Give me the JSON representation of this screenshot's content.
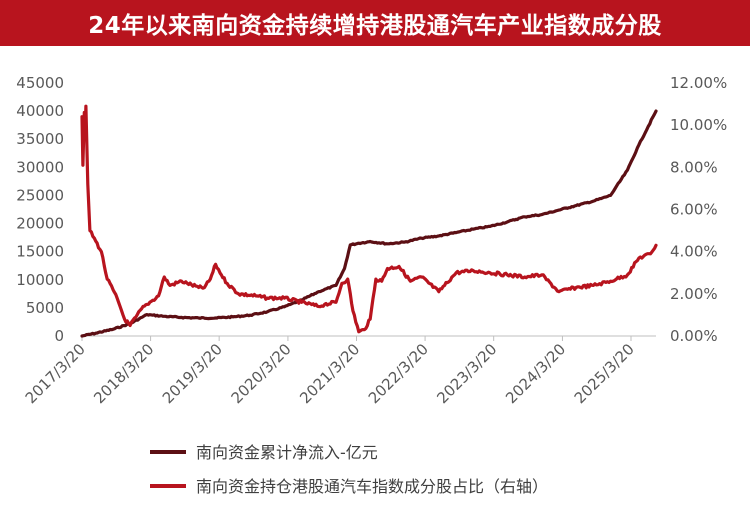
{
  "chart_data": {
    "type": "line",
    "title": "24年以来南向资金持续增持港股通汽车产业指数成分股",
    "x_start": "2017/3/20",
    "x_end": "2025/7/31",
    "x_ticks": [
      "2017/3/20",
      "2018/3/20",
      "2019/3/20",
      "2020/3/20",
      "2021/3/20",
      "2022/3/20",
      "2023/3/20",
      "2024/3/20",
      "2025/3/20"
    ],
    "y_left": {
      "lim": [
        0,
        45000
      ],
      "ticks": [
        "0",
        "5000",
        "10000",
        "15000",
        "20000",
        "25000",
        "30000",
        "35000",
        "40000",
        "45000"
      ]
    },
    "y_right": {
      "lim": [
        0,
        12
      ],
      "ticks": [
        "0.00%",
        "2.00%",
        "4.00%",
        "6.00%",
        "8.00%",
        "10.00%",
        "12.00%"
      ]
    },
    "legend_position": "bottom",
    "series": [
      {
        "name": "南向资金累计净流入-亿元",
        "axis": "left",
        "color": "#5c0f14",
        "x": [
          "2017/3/20",
          "2017/6/1",
          "2017/9/1",
          "2017/12/1",
          "2018/3/1",
          "2018/4/1",
          "2018/6/1",
          "2018/9/1",
          "2018/12/1",
          "2019/3/1",
          "2019/6/1",
          "2019/9/1",
          "2019/12/1",
          "2020/3/1",
          "2020/4/1",
          "2020/6/1",
          "2020/9/1",
          "2020/12/1",
          "2021/1/15",
          "2021/2/15",
          "2021/4/1",
          "2021/6/1",
          "2021/9/1",
          "2021/12/1",
          "2022/3/1",
          "2022/6/1",
          "2022/9/1",
          "2022/12/1",
          "2023/3/1",
          "2023/6/1",
          "2023/9/1",
          "2023/12/1",
          "2024/3/1",
          "2024/6/1",
          "2024/9/1",
          "2024/12/1",
          "2025/3/1",
          "2025/5/1",
          "2025/7/31"
        ],
        "values": [
          0,
          500,
          1200,
          2200,
          3800,
          3700,
          3500,
          3300,
          3200,
          3200,
          3400,
          3700,
          4300,
          5200,
          5600,
          6400,
          7900,
          9000,
          12000,
          16200,
          16500,
          16800,
          16400,
          16700,
          17400,
          17800,
          18400,
          19000,
          19500,
          20300,
          21200,
          21600,
          22400,
          23200,
          24000,
          25000,
          29500,
          34000,
          40000
        ]
      },
      {
        "name": "南向资金持仓港股通汽车指数成分股占比（右轴）",
        "axis": "right",
        "color": "#b8141e",
        "x": [
          "2017/3/20",
          "2017/3/25",
          "2017/4/1",
          "2017/4/5",
          "2017/4/10",
          "2017/4/20",
          "2017/5/1",
          "2017/6/1",
          "2017/7/1",
          "2017/8/1",
          "2017/9/1",
          "2017/10/1",
          "2017/11/1",
          "2017/12/1",
          "2018/1/1",
          "2018/2/1",
          "2018/3/1",
          "2018/4/1",
          "2018/5/1",
          "2018/6/1",
          "2018/7/1",
          "2018/9/1",
          "2018/10/1",
          "2018/12/1",
          "2019/1/1",
          "2019/2/1",
          "2019/3/1",
          "2019/4/1",
          "2019/5/1",
          "2019/7/1",
          "2019/10/1",
          "2019/12/1",
          "2020/3/1",
          "2020/6/1",
          "2020/9/1",
          "2020/10/1",
          "2020/12/1",
          "2021/1/1",
          "2021/2/1",
          "2021/3/1",
          "2021/4/1",
          "2021/5/1",
          "2021/6/1",
          "2021/7/1",
          "2021/8/1",
          "2021/9/1",
          "2021/11/1",
          "2022/1/1",
          "2022/3/1",
          "2022/6/1",
          "2022/9/1",
          "2022/12/1",
          "2023/3/1",
          "2023/6/1",
          "2023/9/1",
          "2023/12/1",
          "2024/3/1",
          "2024/6/1",
          "2024/9/1",
          "2024/12/1",
          "2025/1/1",
          "2025/3/1",
          "2025/5/1",
          "2025/7/1",
          "2025/7/31"
        ],
        "values": [
          10.4,
          8.1,
          10.6,
          9.5,
          10.9,
          7.2,
          5.0,
          4.5,
          4.0,
          2.7,
          2.2,
          1.6,
          0.8,
          0.5,
          0.9,
          1.3,
          1.5,
          1.7,
          1.9,
          2.8,
          2.4,
          2.6,
          2.5,
          2.3,
          2.3,
          2.7,
          3.4,
          2.9,
          2.5,
          2.0,
          1.9,
          1.8,
          1.8,
          1.6,
          1.4,
          1.5,
          1.6,
          2.5,
          2.7,
          1.2,
          0.2,
          0.3,
          0.8,
          2.7,
          2.6,
          3.2,
          3.3,
          2.6,
          2.8,
          2.1,
          3.0,
          3.1,
          3.0,
          2.9,
          2.8,
          2.9,
          2.1,
          2.3,
          2.4,
          2.6,
          2.7,
          2.9,
          3.7,
          3.9,
          4.3
        ]
      }
    ]
  }
}
